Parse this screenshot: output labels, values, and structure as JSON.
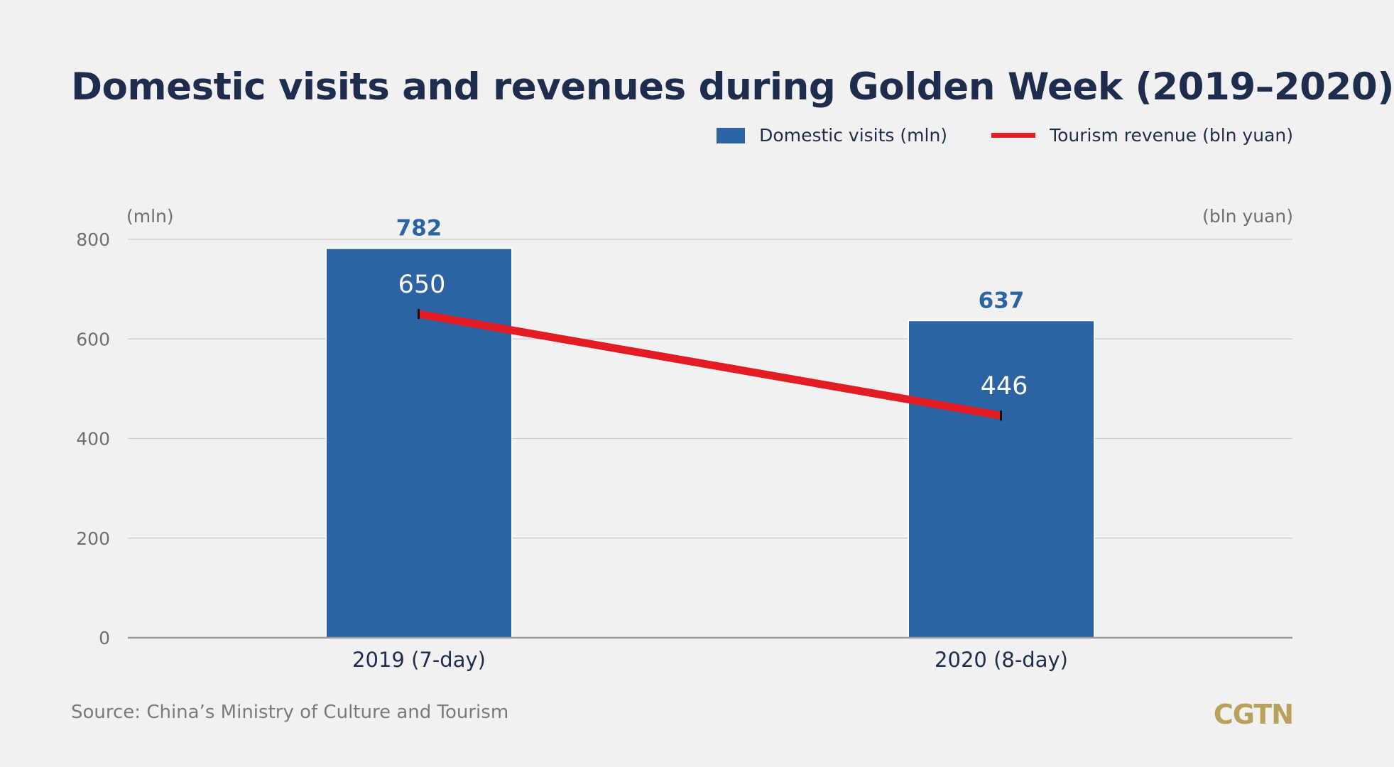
{
  "colors": {
    "bar": "#2c63a2",
    "line": "#e31b23",
    "title": "#1e2d4e",
    "logo": "#b7a15c"
  },
  "chart_data": {
    "type": "bar",
    "title": "Domestic visits and revenues during Golden Week (2019–2020)",
    "categories": [
      "2019 (7-day)",
      "2020 (8-day)"
    ],
    "series": [
      {
        "name": "Domestic visits (mln)",
        "type": "bar",
        "axis": "left",
        "values": [
          782,
          637
        ],
        "labels": [
          "782",
          "637"
        ]
      },
      {
        "name": "Tourism revenue (bln yuan)",
        "type": "line",
        "axis": "right",
        "values": [
          650,
          446
        ],
        "labels": [
          "650",
          "446"
        ]
      }
    ],
    "y_left": {
      "unit": "(mln)",
      "ylim": [
        0,
        800
      ],
      "ticks": [
        "800",
        "600",
        "400",
        "200",
        "0"
      ]
    },
    "y_right": {
      "unit": "(bln yuan)"
    },
    "grid": true,
    "legend_position": "top-right"
  },
  "source": "Source: China’s Ministry of Culture and Tourism",
  "logo": "CGTN"
}
